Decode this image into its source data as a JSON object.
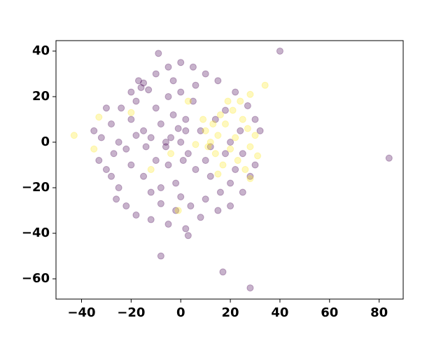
{
  "chart_data": {
    "type": "scatter",
    "xlim": [
      -50.3,
      89.7
    ],
    "ylim": [
      -68.9,
      44.6
    ],
    "xticks": [
      {
        "value": -40,
        "label": "−40"
      },
      {
        "value": -20,
        "label": "−20"
      },
      0,
      20,
      40,
      60,
      80
    ],
    "yticks": [
      {
        "value": -60,
        "label": "−60"
      },
      {
        "value": -40,
        "label": "−40"
      },
      {
        "value": -20,
        "label": "−20"
      },
      0,
      20,
      40
    ],
    "alpha": 0.3,
    "series": [
      {
        "color": "#440154",
        "x": [
          -30,
          -28,
          -32,
          -27,
          -30,
          -25,
          -22,
          -18,
          -12,
          -5,
          2,
          8,
          15,
          20,
          25,
          28,
          -20,
          -15,
          -16,
          -13,
          -17,
          -10,
          -5,
          0,
          5,
          10,
          15,
          22,
          27,
          30,
          -24,
          -20,
          -18,
          -22,
          -20,
          -15,
          -12,
          -8,
          -2,
          4,
          10,
          16,
          20,
          -10,
          -5,
          0,
          5,
          -8,
          -3,
          2,
          -12,
          -6,
          0,
          3,
          -5,
          -10,
          6,
          10,
          12,
          8,
          14,
          18,
          -2,
          -15,
          -25,
          -28,
          -8,
          12,
          18,
          25,
          24,
          20,
          -3,
          6,
          -18,
          -26,
          0,
          22,
          -6,
          2,
          30,
          32,
          -33,
          -35,
          84,
          40,
          -9,
          -8,
          17,
          28,
          3,
          -4,
          1,
          -14,
          -1
        ],
        "y": [
          15,
          8,
          2,
          -5,
          -12,
          -20,
          -28,
          -32,
          -34,
          -36,
          -38,
          -33,
          -30,
          -28,
          -22,
          -15,
          22,
          26,
          24,
          23,
          27,
          30,
          33,
          35,
          33,
          30,
          27,
          22,
          16,
          10,
          15,
          10,
          3,
          -3,
          -10,
          -15,
          -22,
          -27,
          -30,
          -28,
          -25,
          -22,
          -18,
          15,
          20,
          22,
          18,
          8,
          12,
          5,
          2,
          -2,
          0,
          -5,
          -10,
          -8,
          -12,
          -8,
          -2,
          5,
          10,
          14,
          -18,
          5,
          0,
          -15,
          -20,
          -15,
          -5,
          -5,
          5,
          0,
          27,
          25,
          18,
          -25,
          -24,
          -12,
          0,
          10,
          -10,
          5,
          -8,
          5,
          -7,
          40,
          39,
          -50,
          -57,
          -64,
          -41,
          2,
          -8,
          -2,
          6
        ]
      },
      {
        "color": "#fde725",
        "x": [
          10,
          12,
          15,
          18,
          20,
          22,
          25,
          14,
          16,
          19,
          23,
          26,
          28,
          30,
          27,
          13,
          17,
          21,
          24,
          11,
          9,
          15,
          28,
          31,
          -43,
          -35,
          -33,
          -20,
          34,
          28,
          -1,
          6,
          -4,
          3,
          -12
        ],
        "y": [
          5,
          0,
          3,
          8,
          -3,
          2,
          10,
          -5,
          12,
          18,
          -8,
          -12,
          -2,
          3,
          6,
          8,
          -10,
          14,
          18,
          -2,
          10,
          -14,
          -16,
          -6,
          3,
          -3,
          11,
          13,
          25,
          21,
          -30,
          -1,
          -5,
          18,
          -12
        ]
      }
    ]
  }
}
